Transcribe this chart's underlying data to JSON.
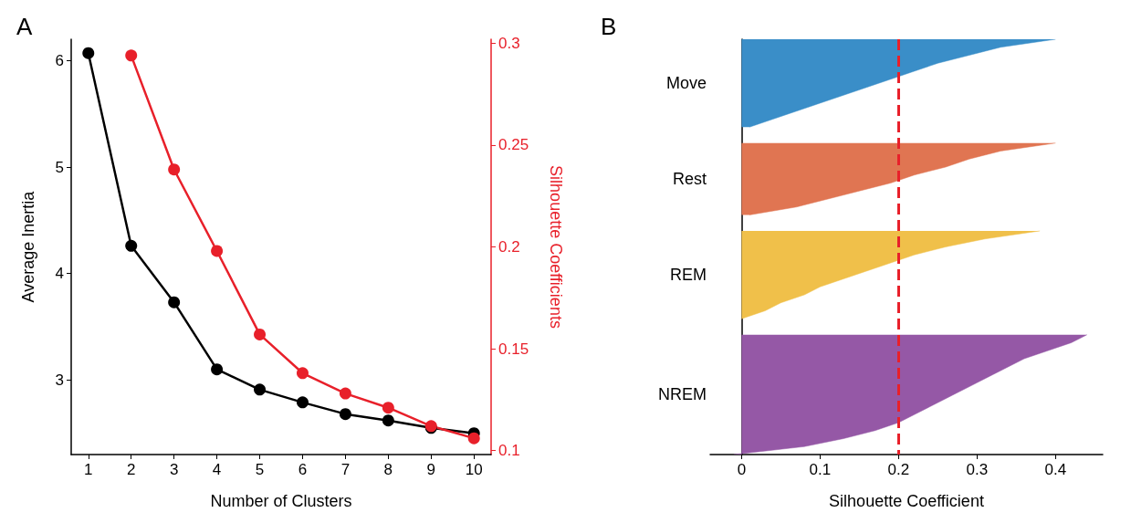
{
  "chart_data": [
    {
      "type": "line",
      "annotations": [
        "A"
      ],
      "xlabel": "Number of Clusters",
      "ylabel": "Average Inertia",
      "y2label": "Silhouette Coefficients",
      "xlim": [
        0.6,
        10.4
      ],
      "xticks": [
        1,
        2,
        3,
        4,
        5,
        6,
        7,
        8,
        9,
        10
      ],
      "ylim": [
        2.3,
        6.2
      ],
      "yticks": [
        3,
        4,
        5,
        6
      ],
      "y2lim": [
        0.098,
        0.302
      ],
      "y2ticks": [
        0.1,
        0.15,
        0.2,
        0.25,
        0.3
      ],
      "marker": "circle",
      "grid": false,
      "legend": false,
      "series": [
        {
          "color": "#000000",
          "x": [
            1,
            2,
            3,
            4,
            5,
            6,
            7,
            8,
            9,
            10
          ],
          "values": [
            6.07,
            4.26,
            3.73,
            3.1,
            2.91,
            2.79,
            2.68,
            2.62,
            2.55,
            2.5
          ]
        },
        {
          "color": "#e8202a",
          "axis": "y2",
          "x": [
            2,
            3,
            4,
            5,
            6,
            7,
            8,
            9,
            10
          ],
          "values": [
            0.294,
            0.238,
            0.198,
            0.157,
            0.138,
            0.128,
            0.121,
            0.112,
            0.106
          ]
        }
      ]
    },
    {
      "type": "area",
      "orientation": "horizontal",
      "annotations": [
        "B"
      ],
      "xlabel": "Silhouette Coefficient",
      "xlim": [
        -0.04,
        0.46
      ],
      "xticks": [
        0,
        0.1,
        0.2,
        0.3,
        0.4
      ],
      "grid": false,
      "legend": false,
      "categories": [
        null,
        null,
        null,
        null,
        null,
        null,
        null,
        null,
        null,
        null,
        null,
        null,
        null,
        null,
        null,
        null,
        null,
        null,
        null,
        null,
        null,
        null,
        null,
        null,
        null,
        null,
        null,
        null,
        null,
        null,
        null,
        null,
        null,
        null,
        null,
        null,
        null,
        null,
        null,
        null,
        null,
        null,
        null,
        null,
        null,
        null,
        null,
        null,
        null,
        null,
        null,
        null,
        null
      ],
      "ref_lines": [
        {
          "axis": "x",
          "value": 0.2,
          "color": "#e8202a",
          "line_style": "dashed"
        }
      ],
      "series": [
        {
          "name": "Move",
          "color": "#3a8ec8",
          "values": [
            0.4,
            0.33,
            0.29,
            0.25,
            0.22,
            0.19,
            0.16,
            0.13,
            0.1,
            0.07,
            0.04,
            0.01,
            null,
            null,
            null,
            null,
            null,
            null,
            null,
            null,
            null,
            null,
            null,
            null,
            null,
            null,
            null,
            null,
            null,
            null,
            null,
            null,
            null,
            null,
            null,
            null,
            null,
            null,
            null,
            null,
            null,
            null,
            null,
            null,
            null,
            null,
            null,
            null,
            null,
            null,
            null,
            null,
            null
          ]
        },
        {
          "name": "Rest",
          "color": "#e07552",
          "values": [
            null,
            null,
            null,
            null,
            null,
            null,
            null,
            null,
            null,
            null,
            null,
            null,
            null,
            0.4,
            0.33,
            0.29,
            0.26,
            0.22,
            0.19,
            0.15,
            0.11,
            0.07,
            0.01,
            null,
            null,
            null,
            null,
            null,
            null,
            null,
            null,
            null,
            null,
            null,
            null,
            null,
            null,
            null,
            null,
            null,
            null,
            null,
            null,
            null,
            null,
            null,
            null,
            null,
            null,
            null,
            null,
            null,
            null
          ]
        },
        {
          "name": "REM",
          "color": "#f0c04a",
          "values": [
            null,
            null,
            null,
            null,
            null,
            null,
            null,
            null,
            null,
            null,
            null,
            null,
            null,
            null,
            null,
            null,
            null,
            null,
            null,
            null,
            null,
            null,
            null,
            null,
            0.38,
            0.31,
            0.26,
            0.22,
            0.19,
            0.16,
            0.13,
            0.1,
            0.08,
            0.05,
            0.03,
            0.0,
            null,
            null,
            null,
            null,
            null,
            null,
            null,
            null,
            null,
            null,
            null,
            null,
            null,
            null,
            null,
            null,
            null
          ]
        },
        {
          "name": "NREM",
          "color": "#9558a6",
          "values": [
            null,
            null,
            null,
            null,
            null,
            null,
            null,
            null,
            null,
            null,
            null,
            null,
            null,
            null,
            null,
            null,
            null,
            null,
            null,
            null,
            null,
            null,
            null,
            null,
            null,
            null,
            null,
            null,
            null,
            null,
            null,
            null,
            null,
            null,
            null,
            null,
            null,
            0.44,
            0.42,
            0.39,
            0.36,
            0.34,
            0.32,
            0.3,
            0.28,
            0.26,
            0.24,
            0.22,
            0.2,
            0.17,
            0.13,
            0.08,
            -0.01
          ]
        }
      ]
    }
  ]
}
